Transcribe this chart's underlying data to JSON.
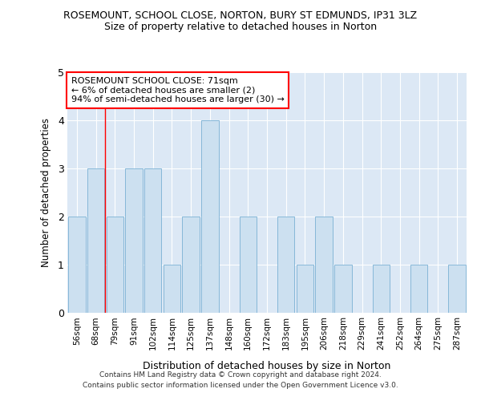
{
  "title1": "ROSEMOUNT, SCHOOL CLOSE, NORTON, BURY ST EDMUNDS, IP31 3LZ",
  "title2": "Size of property relative to detached houses in Norton",
  "xlabel": "Distribution of detached houses by size in Norton",
  "ylabel": "Number of detached properties",
  "categories": [
    "56sqm",
    "68sqm",
    "79sqm",
    "91sqm",
    "102sqm",
    "114sqm",
    "125sqm",
    "137sqm",
    "148sqm",
    "160sqm",
    "172sqm",
    "183sqm",
    "195sqm",
    "206sqm",
    "218sqm",
    "229sqm",
    "241sqm",
    "252sqm",
    "264sqm",
    "275sqm",
    "287sqm"
  ],
  "values": [
    2,
    3,
    2,
    3,
    3,
    1,
    2,
    4,
    0,
    2,
    0,
    2,
    1,
    2,
    1,
    0,
    1,
    0,
    1,
    0,
    1
  ],
  "bar_color": "#cce0f0",
  "bar_edgecolor": "#7ab0d4",
  "bar_linewidth": 0.6,
  "red_line_x": 1.5,
  "annotation_line1": "ROSEMOUNT SCHOOL CLOSE: 71sqm",
  "annotation_line2": "← 6% of detached houses are smaller (2)",
  "annotation_line3": "94% of semi-detached houses are larger (30) →",
  "annotation_box_edgecolor": "red",
  "ylim": [
    0,
    5
  ],
  "yticks": [
    0,
    1,
    2,
    3,
    4,
    5
  ],
  "footer1": "Contains HM Land Registry data © Crown copyright and database right 2024.",
  "footer2": "Contains public sector information licensed under the Open Government Licence v3.0.",
  "fig_background": "#ffffff",
  "plot_background": "#dce8f5"
}
